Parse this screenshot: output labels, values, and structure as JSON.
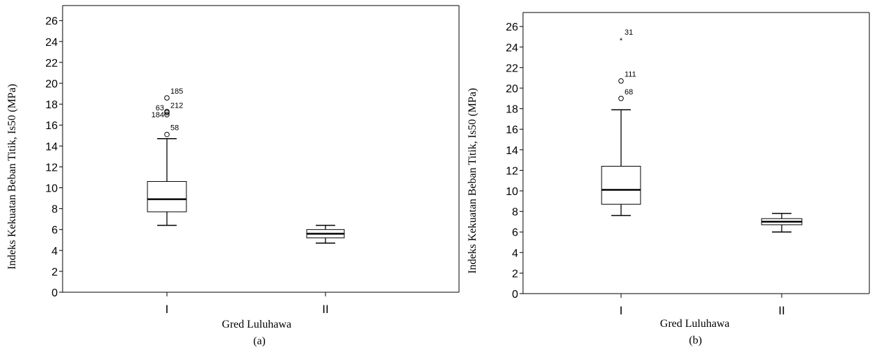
{
  "chart_data": [
    {
      "type": "boxplot",
      "caption": "(a)",
      "xlabel": "Gred Luluhawa",
      "ylabel": "Indeks Kekuatan Beban Titik, Is50 (MPa)",
      "ylim": [
        0,
        26
      ],
      "yticks": [
        "0",
        "2",
        "4",
        "6",
        "8",
        "10",
        "12",
        "14",
        "16",
        "18",
        "20",
        "22",
        "24",
        "26"
      ],
      "categories": [
        "I",
        "II"
      ],
      "boxes": [
        {
          "category": "I",
          "whisker_low": 6.4,
          "q1": 7.7,
          "median": 8.9,
          "q3": 10.6,
          "whisker_high": 14.7,
          "outliers": [
            {
              "value": 18.6,
              "label": "185",
              "marker": "circle"
            },
            {
              "value": 17.3,
              "label": "212",
              "marker": "circle"
            },
            {
              "value": 17.2,
              "label": "63",
              "marker": "circle"
            },
            {
              "value": 17.0,
              "label": "184",
              "marker": "circle"
            },
            {
              "value": 15.1,
              "label": "58",
              "marker": "circle"
            }
          ]
        },
        {
          "category": "II",
          "whisker_low": 4.7,
          "q1": 5.2,
          "median": 5.6,
          "q3": 6.0,
          "whisker_high": 6.4,
          "outliers": []
        }
      ]
    },
    {
      "type": "boxplot",
      "caption": "(b)",
      "xlabel": "Gred Luluhawa",
      "ylabel": "Indeks Kekuatan Beban Titik, Is50 (MPa)",
      "ylim": [
        0,
        26
      ],
      "yticks": [
        "0",
        "2",
        "4",
        "6",
        "8",
        "10",
        "12",
        "14",
        "16",
        "18",
        "20",
        "22",
        "24",
        "26"
      ],
      "categories": [
        "I",
        "II"
      ],
      "boxes": [
        {
          "category": "I",
          "whisker_low": 7.6,
          "q1": 8.7,
          "median": 10.1,
          "q3": 12.4,
          "whisker_high": 17.9,
          "outliers": [
            {
              "value": 24.8,
              "label": "31",
              "marker": "star"
            },
            {
              "value": 20.7,
              "label": "111",
              "marker": "circle"
            },
            {
              "value": 19.0,
              "label": "68",
              "marker": "circle"
            }
          ]
        },
        {
          "category": "II",
          "whisker_low": 6.0,
          "q1": 6.7,
          "median": 7.0,
          "q3": 7.3,
          "whisker_high": 7.8,
          "outliers": []
        }
      ]
    }
  ]
}
